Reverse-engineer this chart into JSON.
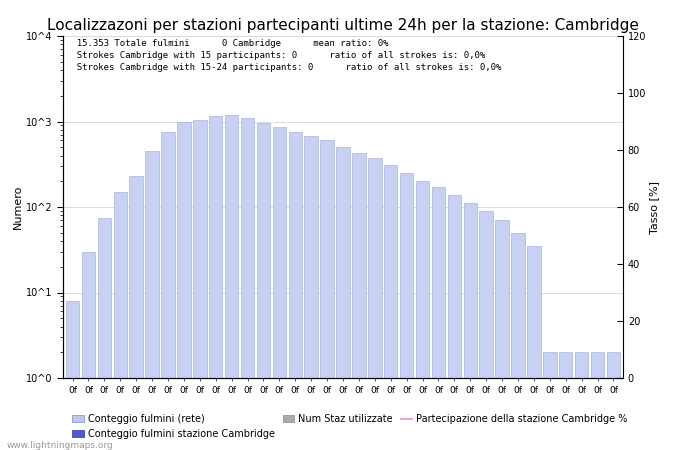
{
  "title": "Localizzazoni per stazioni partecipanti ultime 24h per la stazione: Cambridge",
  "annotation_lines": [
    "15.353 Totale fulmini      0 Cambridge      mean ratio: 0%",
    "Strokes Cambridge with 15 participants: 0      ratio of all strokes is: 0,0%",
    "Strokes Cambridge with 15-24 participants: 0      ratio of all strokes is: 0,0%"
  ],
  "ylabel_left": "Numero",
  "ylabel_right": "Tasso [%]",
  "watermark": "www.lightningmaps.org",
  "legend": [
    {
      "label": "Conteggio fulmini (rete)",
      "color": "#c0c8f0"
    },
    {
      "label": "Conteggio fulmini stazione Cambridge",
      "color": "#5555cc"
    },
    {
      "label": "Num Staz utilizzate",
      "color": "#aaaaaa"
    },
    {
      "label": "Partecipazione della stazione Cambridge %",
      "color": "#ff88cc"
    }
  ],
  "bar_values": [
    8,
    30,
    75,
    150,
    230,
    450,
    750,
    980,
    1050,
    1150,
    1200,
    1100,
    970,
    860,
    760,
    680,
    600,
    500,
    430,
    370,
    310,
    250,
    200,
    170,
    140,
    110,
    90,
    70,
    50,
    35,
    2,
    2,
    2,
    2,
    2
  ],
  "bar_color": "#c8d0f4",
  "bar_edge_color": "#a0a8d8",
  "right_ylim": [
    0,
    120
  ],
  "right_yticks": [
    0,
    20,
    40,
    60,
    80,
    100,
    120
  ],
  "background_color": "#ffffff",
  "grid_color": "#cccccc",
  "title_fontsize": 11,
  "annotation_fontsize": 7,
  "axis_label_fontsize": 8
}
